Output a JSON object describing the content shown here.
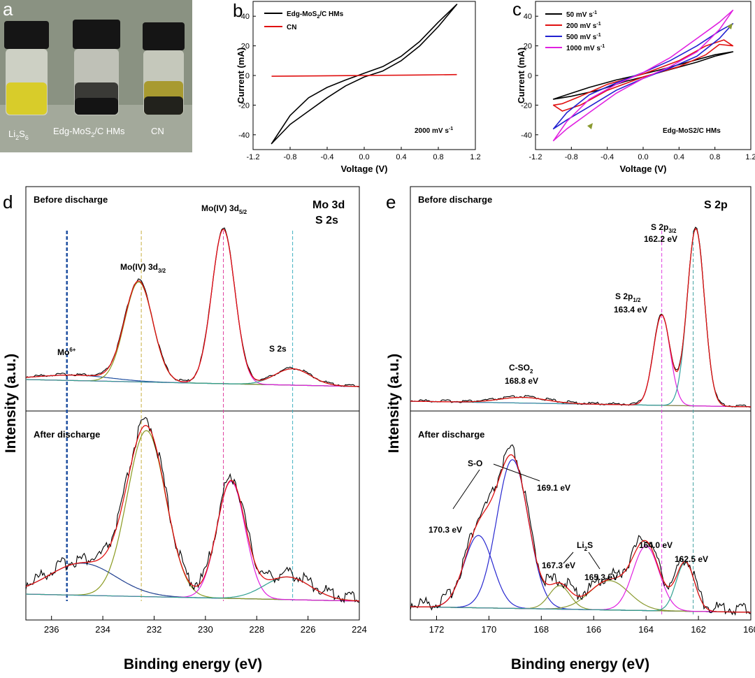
{
  "panel_labels": [
    "a",
    "b",
    "c",
    "d",
    "e"
  ],
  "photo": {
    "vials": [
      "Li2S6",
      "Edg-MoS2/C HMs",
      "CN"
    ],
    "colors": {
      "li2s6": "#d8cc2a",
      "mos2": "#1a1a1a",
      "cn": "#2a2a22",
      "background": "#8a9282",
      "cap": "#151515"
    }
  },
  "chart_data": [
    {
      "type": "line",
      "panel": "b",
      "xlabel": "Voltage (V)",
      "ylabel": "Current (mA)",
      "xlim": [
        -1.2,
        1.2
      ],
      "ylim": [
        -50,
        50
      ],
      "xticks": [
        -1.2,
        -0.8,
        -0.4,
        0.0,
        0.4,
        0.8,
        1.2
      ],
      "yticks": [
        -40,
        -20,
        0,
        20,
        40
      ],
      "legend_position": "top-left",
      "annotation": "2000 mV s-1",
      "series": [
        {
          "name": "Edg-MoS2/C HMs",
          "color": "#000000",
          "closed": true,
          "x": [
            -1.0,
            -0.8,
            -0.6,
            -0.4,
            -0.2,
            0.0,
            0.2,
            0.4,
            0.6,
            0.8,
            1.0,
            0.8,
            0.6,
            0.4,
            0.2,
            0.0,
            -0.2,
            -0.4,
            -0.6,
            -0.8,
            -1.0
          ],
          "y": [
            -46,
            -33,
            -24,
            -15,
            -7,
            -1,
            3,
            10,
            20,
            33,
            48,
            36,
            23,
            13,
            6,
            1.5,
            -3,
            -8,
            -15,
            -27,
            -46
          ]
        },
        {
          "name": "CN",
          "color": "#e01010",
          "x": [
            -1.0,
            -0.5,
            0.0,
            0.5,
            1.0
          ],
          "y": [
            -0.5,
            -0.3,
            0,
            0.3,
            0.6
          ]
        }
      ]
    },
    {
      "type": "line",
      "panel": "c",
      "xlabel": "Voltage (V)",
      "ylabel": "Current (mA)",
      "xlim": [
        -1.2,
        1.2
      ],
      "ylim": [
        -50,
        50
      ],
      "xticks": [
        -1.2,
        -0.8,
        -0.4,
        0.0,
        0.4,
        0.8,
        1.2
      ],
      "yticks": [
        -40,
        -20,
        0,
        20,
        40
      ],
      "legend_position": "top-left",
      "annotation": "Edg-MoS2/C HMs",
      "series": [
        {
          "name": "50 mV s-1",
          "color": "#000000",
          "closed": true,
          "x": [
            -1.0,
            -0.8,
            -0.5,
            -0.2,
            0.0,
            0.3,
            0.6,
            0.8,
            1.0,
            0.8,
            0.5,
            0.2,
            0.0,
            -0.3,
            -0.6,
            -0.8,
            -1.0
          ],
          "y": [
            -16,
            -14,
            -10,
            -4,
            -1,
            4,
            9,
            13,
            16,
            14,
            9,
            4,
            1,
            -3,
            -8,
            -12,
            -16
          ]
        },
        {
          "name": "200 mV s-1",
          "color": "#e01010",
          "closed": true,
          "x": [
            -1.0,
            -0.9,
            -0.7,
            -0.4,
            0.0,
            0.4,
            0.7,
            0.85,
            1.0,
            0.9,
            0.7,
            0.4,
            0.0,
            -0.4,
            -0.7,
            -0.9,
            -1.0
          ],
          "y": [
            -20,
            -24,
            -20,
            -10,
            -1,
            6,
            14,
            21,
            20,
            24,
            20,
            10,
            1,
            -6,
            -14,
            -19,
            -20
          ]
        },
        {
          "name": "500 mV s-1",
          "color": "#2020d0",
          "closed": true,
          "x": [
            -1.0,
            -0.85,
            -0.6,
            -0.3,
            0.0,
            0.3,
            0.6,
            0.85,
            1.0,
            0.85,
            0.6,
            0.3,
            0.0,
            -0.3,
            -0.6,
            -0.85,
            -1.0
          ],
          "y": [
            -36,
            -30,
            -21,
            -10,
            -2,
            5,
            13,
            25,
            35,
            30,
            20,
            10,
            2,
            -5,
            -13,
            -25,
            -36
          ]
        },
        {
          "name": "1000 mV s-1",
          "color": "#e020e0",
          "closed": true,
          "x": [
            -1.0,
            -0.85,
            -0.6,
            -0.3,
            0.0,
            0.3,
            0.6,
            0.85,
            1.0,
            0.85,
            0.6,
            0.3,
            0.0,
            -0.3,
            -0.6,
            -0.85,
            -1.0
          ],
          "y": [
            -44,
            -36,
            -25,
            -12,
            -2,
            6,
            16,
            31,
            44,
            36,
            25,
            12,
            2,
            -6,
            -16,
            -31,
            -44
          ]
        }
      ]
    },
    {
      "type": "line",
      "panel": "d",
      "xlabel": "Binding energy (eV)",
      "ylabel": "Intensity (a.u.)",
      "xlim": [
        237,
        224
      ],
      "x_reversed": true,
      "xticks": [
        236,
        234,
        232,
        230,
        228,
        226,
        224
      ],
      "title": "Mo 3d",
      "subtitle": "S 2s",
      "top_label": "Before discharge",
      "bottom_label": "After discharge",
      "peak_lines": [
        {
          "x": 235.4,
          "color": "#1f4fa0"
        },
        {
          "x": 232.5,
          "color": "#c8b040"
        },
        {
          "x": 229.3,
          "color": "#e040a0"
        },
        {
          "x": 226.6,
          "color": "#40b0c0"
        }
      ],
      "top_annotations": [
        "Mo6+",
        "Mo(IV) 3d3/2",
        "Mo(IV) 3d5/2",
        "S 2s"
      ],
      "top_peaks": [
        {
          "center": 235.1,
          "height": 0.03,
          "width": 1.4,
          "color": "#1f4fa0"
        },
        {
          "center": 232.6,
          "height": 0.55,
          "width": 0.55,
          "color": "#8a9a20"
        },
        {
          "center": 229.3,
          "height": 0.85,
          "width": 0.45,
          "color": "#e020e0"
        },
        {
          "center": 226.6,
          "height": 0.09,
          "width": 0.7,
          "color": "#30a090"
        }
      ],
      "bottom_peaks": [
        {
          "center": 234.8,
          "height": 0.17,
          "width": 1.3,
          "color": "#1f3f90"
        },
        {
          "center": 232.3,
          "height": 0.88,
          "width": 0.75,
          "color": "#8a9a20"
        },
        {
          "center": 229.0,
          "height": 0.62,
          "width": 0.55,
          "color": "#e020e0"
        },
        {
          "center": 226.8,
          "height": 0.12,
          "width": 0.9,
          "color": "#30a090"
        }
      ]
    },
    {
      "type": "line",
      "panel": "e",
      "xlabel": "Binding energy (eV)",
      "ylabel": "Intensity (a.u.)",
      "xlim": [
        173,
        160
      ],
      "x_reversed": true,
      "xticks": [
        172,
        170,
        168,
        166,
        164,
        162,
        160
      ],
      "title": "S 2p",
      "top_label": "Before discharge",
      "bottom_label": "After discharge",
      "peak_lines": [
        {
          "x": 163.4,
          "color": "#e040e0"
        },
        {
          "x": 162.2,
          "color": "#40a0a0"
        }
      ],
      "top_annotations": [
        "S 2p3/2",
        "162.2 eV",
        "S 2p1/2",
        "163.4 eV",
        "C-SO2",
        "168.8 eV"
      ],
      "bottom_annotations": [
        "S-O",
        "169.1 eV",
        "170.3 eV",
        "Li2S",
        "167.3 eV",
        "165.3 eV",
        "164.0 eV",
        "162.5 eV"
      ],
      "top_peaks": [
        {
          "center": 168.7,
          "height": 0.03,
          "width": 0.9,
          "color": "#8a8a40"
        },
        {
          "center": 163.4,
          "height": 0.48,
          "width": 0.32,
          "color": "#e020e0"
        },
        {
          "center": 162.1,
          "height": 0.94,
          "width": 0.33,
          "color": "#30a0a0"
        }
      ],
      "bottom_peaks": [
        {
          "center": 170.4,
          "height": 0.37,
          "width": 0.55,
          "color": "#2828d0"
        },
        {
          "center": 169.1,
          "height": 0.76,
          "width": 0.6,
          "color": "#2828d0"
        },
        {
          "center": 167.3,
          "height": 0.12,
          "width": 0.4,
          "color": "#8a9a30"
        },
        {
          "center": 165.4,
          "height": 0.15,
          "width": 0.75,
          "color": "#8a9a30"
        },
        {
          "center": 164.0,
          "height": 0.33,
          "width": 0.5,
          "color": "#e020e0"
        },
        {
          "center": 162.5,
          "height": 0.25,
          "width": 0.35,
          "color": "#30a090"
        }
      ]
    }
  ]
}
